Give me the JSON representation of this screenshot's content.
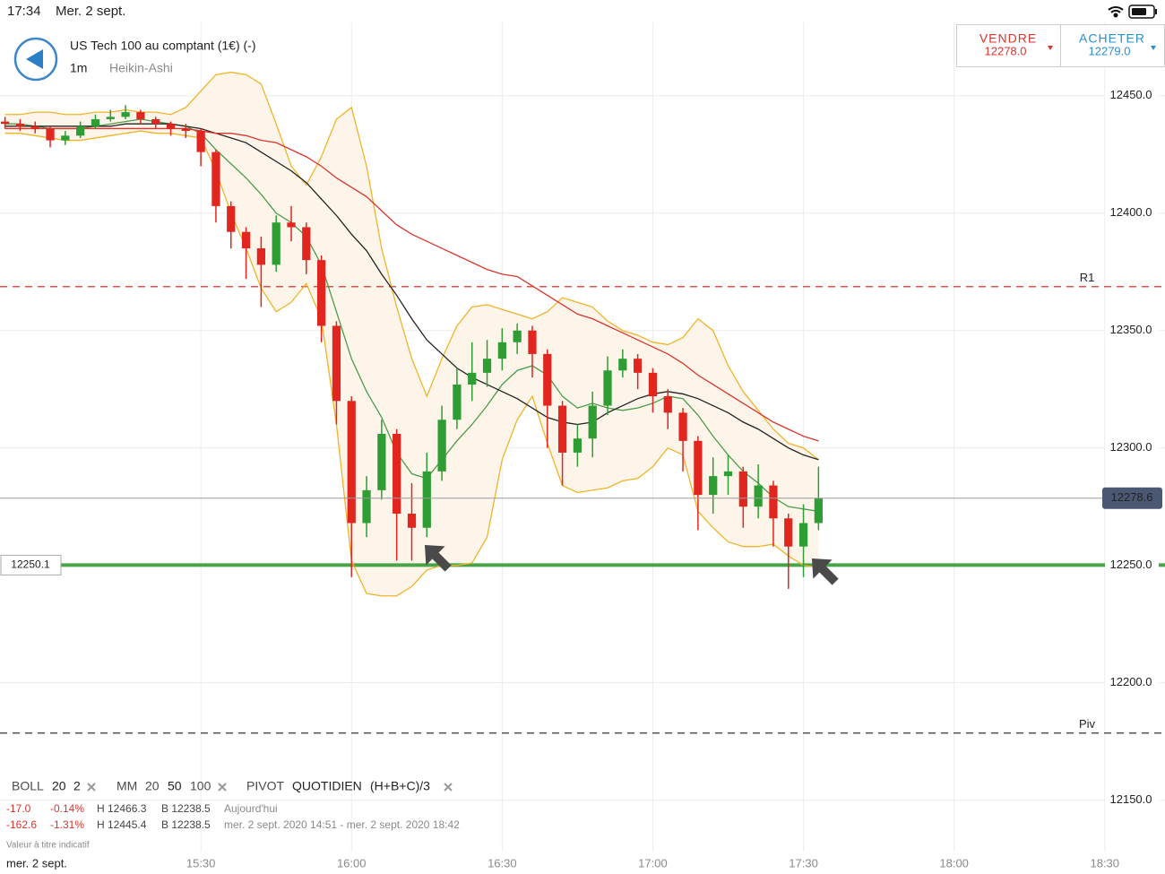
{
  "status_bar": {
    "time": "17:34",
    "date": "Mer. 2 sept."
  },
  "header": {
    "instrument": "US Tech 100 au comptant (1€) (-)",
    "interval": "1m",
    "style": "Heikin-Ashi"
  },
  "trade": {
    "sell": {
      "label": "VENDRE",
      "price": "12278.0"
    },
    "buy": {
      "label": "ACHETER",
      "price": "12279.0"
    }
  },
  "indicators": {
    "boll": [
      "BOLL",
      "20",
      "2"
    ],
    "mm": [
      "MM",
      "20",
      "50",
      "100"
    ],
    "pivot": [
      "PIVOT",
      "QUOTIDIEN",
      "(H+B+C)/3"
    ]
  },
  "stats": [
    [
      "-17.0",
      "-0.14%",
      "H 12466.3",
      "B 12238.5",
      "Aujourd'hui"
    ],
    [
      "-162.6",
      "-1.31%",
      "H 12445.4",
      "B 12238.5",
      "mer. 2 sept. 2020 14:51 - mer. 2 sept. 2020 18:42"
    ]
  ],
  "footnote": "Valeur à titre indicatif",
  "date_label": "mer. 2 sept.",
  "chart": {
    "type": "candlestick",
    "x": [
      "14:51",
      "14:54",
      "14:57",
      "15:00",
      "15:03",
      "15:06",
      "15:09",
      "15:12",
      "15:15",
      "15:18",
      "15:21",
      "15:24",
      "15:27",
      "15:30",
      "15:33",
      "15:36",
      "15:39",
      "15:42",
      "15:45",
      "15:48",
      "15:51",
      "15:54",
      "15:57",
      "16:00",
      "16:03",
      "16:06",
      "16:09",
      "16:12",
      "16:15",
      "16:18",
      "16:21",
      "16:24",
      "16:27",
      "16:30",
      "16:33",
      "16:36",
      "16:39",
      "16:42",
      "16:45",
      "16:48",
      "16:51",
      "16:54",
      "16:57",
      "17:00",
      "17:03",
      "17:06",
      "17:09",
      "17:12",
      "17:15",
      "17:18",
      "17:21",
      "17:24",
      "17:27",
      "17:30",
      "17:33"
    ],
    "open": [
      12439,
      12438,
      12437,
      12436,
      12431,
      12433,
      12437,
      12440,
      12441,
      12443,
      12440,
      12438,
      12436,
      12435,
      12426,
      12403,
      12392,
      12385,
      12378,
      12396,
      12394,
      12380,
      12352,
      12320,
      12268,
      12282,
      12306,
      12272,
      12266,
      12290,
      12312,
      12327,
      12332,
      12338,
      12345,
      12350,
      12340,
      12318,
      12298,
      12304,
      12318,
      12333,
      12338,
      12332,
      12322,
      12315,
      12303,
      12280,
      12288,
      12290,
      12275,
      12284,
      12270,
      12258,
      12268
    ],
    "high": [
      12441,
      12440,
      12439,
      12437,
      12435,
      12439,
      12442,
      12444,
      12446,
      12444,
      12441,
      12439,
      12438,
      12436,
      12427,
      12405,
      12394,
      12390,
      12399,
      12403,
      12396,
      12382,
      12354,
      12322,
      12288,
      12312,
      12308,
      12285,
      12298,
      12318,
      12334,
      12345,
      12346,
      12351,
      12353,
      12352,
      12342,
      12320,
      12310,
      12324,
      12339,
      12342,
      12340,
      12334,
      12325,
      12317,
      12305,
      12296,
      12297,
      12292,
      12293,
      12286,
      12272,
      12276,
      12292
    ],
    "low": [
      12436,
      12435,
      12434,
      12428,
      12429,
      12432,
      12436,
      12439,
      12440,
      12438,
      12436,
      12433,
      12432,
      12420,
      12396,
      12385,
      12372,
      12360,
      12375,
      12388,
      12374,
      12345,
      12310,
      12245,
      12262,
      12278,
      12252,
      12252,
      12262,
      12286,
      12308,
      12320,
      12326,
      12333,
      12340,
      12330,
      12300,
      12284,
      12292,
      12296,
      12314,
      12330,
      12325,
      12315,
      12308,
      12290,
      12265,
      12272,
      12280,
      12266,
      12270,
      12258,
      12240,
      12245,
      12265
    ],
    "close": [
      12438,
      12437,
      12436,
      12431,
      12433,
      12437,
      12440,
      12441,
      12443,
      12440,
      12438,
      12436,
      12435,
      12426,
      12403,
      12392,
      12385,
      12378,
      12396,
      12394,
      12380,
      12352,
      12320,
      12268,
      12282,
      12306,
      12272,
      12266,
      12290,
      12312,
      12327,
      12332,
      12338,
      12345,
      12350,
      12340,
      12318,
      12298,
      12304,
      12318,
      12333,
      12338,
      12332,
      12322,
      12315,
      12303,
      12280,
      12288,
      12290,
      12275,
      12284,
      12270,
      12258,
      12268,
      12278.6
    ],
    "up_color": "#2e9e34",
    "down_color": "#e0261e",
    "band_fill": "#fdf5ea",
    "lines": [
      {
        "color": "#f0b429",
        "values": [
          12442,
          12442,
          12443,
          12443,
          12442,
          12442,
          12443,
          12443,
          12444,
          12443,
          12443,
          12442,
          12445,
          12452,
          12459,
          12460,
          12459,
          12455,
          12438,
          12420,
          12412,
          12424,
          12440,
          12445,
          12420,
          12385,
          12360,
          12338,
          12322,
          12338,
          12352,
          12360,
          12361,
          12359,
          12357,
          12355,
          12358,
          12364,
          12362,
          12360,
          12354,
          12350,
          12348,
          12345,
          12344,
          12347,
          12355,
          12350,
          12335,
          12324,
          12316,
          12308,
          12302,
          12300,
          12295
        ]
      },
      {
        "color": "#f0b429",
        "values": [
          12434,
          12434,
          12433,
          12432,
          12431,
          12431,
          12432,
          12433,
          12434,
          12435,
          12434,
          12434,
          12433,
          12432,
          12418,
          12400,
          12385,
          12368,
          12358,
          12362,
          12370,
          12355,
          12310,
          12252,
          12238,
          12237,
          12237,
          12241,
          12248,
          12250,
          12250,
          12251,
          12262,
          12295,
          12312,
          12322,
          12302,
          12284,
          12281,
          12282,
          12283,
          12286,
          12287,
          12292,
          12300,
          12297,
          12273,
          12266,
          12260,
          12258,
          12258,
          12259,
          12254,
          12250,
          12249
        ]
      },
      {
        "color": "#4c9c4c",
        "values": [
          12438,
          12438,
          12437,
          12436,
          12436,
          12436,
          12437,
          12438,
          12439,
          12440,
          12439,
          12438,
          12437,
          12434,
          12427,
          12421,
          12415,
          12408,
          12400,
          12396,
          12390,
          12378,
          12358,
          12338,
          12324,
          12313,
          12298,
          12289,
          12287,
          12295,
          12303,
          12310,
          12318,
          12327,
          12333,
          12335,
          12331,
          12322,
          12317,
          12319,
          12317,
          12316,
          12317,
          12319,
          12322,
          12321,
          12314,
          12305,
          12297,
          12290,
          12285,
          12279,
          12275,
          12274,
          12273
        ]
      },
      {
        "color": "#222222",
        "values": [
          12437,
          12437,
          12437,
          12437,
          12437,
          12437,
          12437,
          12437,
          12438,
          12438,
          12438,
          12438,
          12437,
          12436,
          12434,
          12432,
          12430,
          12426,
          12422,
          12418,
          12413,
          12406,
          12399,
          12391,
          12384,
          12374,
          12365,
          12355,
          12346,
          12340,
          12334,
          12330,
          12327,
          12324,
          12321,
          12317,
          12313,
          12311,
          12310,
          12311,
          12315,
          12318,
          12321,
          12323,
          12324,
          12323,
          12321,
          12318,
          12315,
          12311,
          12308,
          12304,
          12300,
          12297,
          12295
        ]
      },
      {
        "color": "#d9362e",
        "values": [
          12436,
          12436,
          12436,
          12436,
          12436,
          12436,
          12436,
          12436,
          12436,
          12436,
          12436,
          12436,
          12436,
          12435,
          12434,
          12434,
          12433,
          12431,
          12430,
          12427,
          12424,
          12420,
          12415,
          12411,
          12407,
          12401,
          12395,
          12391,
          12388,
          12385,
          12382,
          12379,
          12376,
          12374,
          12373,
          12369,
          12365,
          12361,
          12357,
          12355,
          12352,
          12349,
          12346,
          12343,
          12340,
          12336,
          12331,
          12327,
          12323,
          12319,
          12315,
          12311,
          12308,
          12305,
          12303
        ]
      }
    ],
    "levels": [
      {
        "value": 12368.7,
        "label": "R1",
        "color": "#e0524a"
      },
      {
        "value": 12178.6,
        "label": "Piv",
        "color": "#555555"
      }
    ],
    "support": {
      "value": 12250.1,
      "color": "#49a349"
    },
    "last_price": {
      "value": 12278.6,
      "color": "#4a5874"
    },
    "xlim": [
      "14:50",
      "18:42"
    ],
    "xticks": [
      "15:30",
      "16:00",
      "16:30",
      "17:00",
      "17:30",
      "18:00",
      "18:30"
    ],
    "ylim": [
      12130,
      12490
    ],
    "yticks": [
      {
        "value": 12150,
        "label": "12150.0"
      },
      {
        "value": 12200,
        "label": "12200.0"
      },
      {
        "value": 12250,
        "label": "12250.0"
      },
      {
        "value": 12300,
        "label": "12300.0"
      },
      {
        "value": 12350,
        "label": "12350.0"
      },
      {
        "value": 12400,
        "label": "12400.0"
      },
      {
        "value": 12450,
        "label": "12450.0"
      }
    ],
    "grid": true
  }
}
